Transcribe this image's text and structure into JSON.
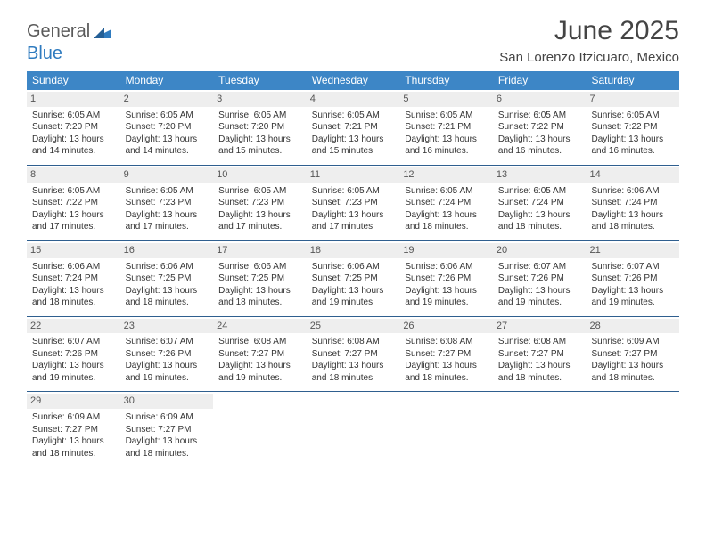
{
  "brand": {
    "part1": "General",
    "part2": "Blue"
  },
  "title": "June 2025",
  "location": "San Lorenzo Itzicuaro, Mexico",
  "colors": {
    "header_bg": "#3d86c6",
    "header_text": "#ffffff",
    "daynum_bg": "#eeeeee",
    "week_border": "#2f5f8f",
    "text": "#333333"
  },
  "weekdays": [
    "Sunday",
    "Monday",
    "Tuesday",
    "Wednesday",
    "Thursday",
    "Friday",
    "Saturday"
  ],
  "weeks": [
    [
      {
        "n": "1",
        "rise": "6:05 AM",
        "set": "7:20 PM",
        "day": "13 hours and 14 minutes."
      },
      {
        "n": "2",
        "rise": "6:05 AM",
        "set": "7:20 PM",
        "day": "13 hours and 14 minutes."
      },
      {
        "n": "3",
        "rise": "6:05 AM",
        "set": "7:20 PM",
        "day": "13 hours and 15 minutes."
      },
      {
        "n": "4",
        "rise": "6:05 AM",
        "set": "7:21 PM",
        "day": "13 hours and 15 minutes."
      },
      {
        "n": "5",
        "rise": "6:05 AM",
        "set": "7:21 PM",
        "day": "13 hours and 16 minutes."
      },
      {
        "n": "6",
        "rise": "6:05 AM",
        "set": "7:22 PM",
        "day": "13 hours and 16 minutes."
      },
      {
        "n": "7",
        "rise": "6:05 AM",
        "set": "7:22 PM",
        "day": "13 hours and 16 minutes."
      }
    ],
    [
      {
        "n": "8",
        "rise": "6:05 AM",
        "set": "7:22 PM",
        "day": "13 hours and 17 minutes."
      },
      {
        "n": "9",
        "rise": "6:05 AM",
        "set": "7:23 PM",
        "day": "13 hours and 17 minutes."
      },
      {
        "n": "10",
        "rise": "6:05 AM",
        "set": "7:23 PM",
        "day": "13 hours and 17 minutes."
      },
      {
        "n": "11",
        "rise": "6:05 AM",
        "set": "7:23 PM",
        "day": "13 hours and 17 minutes."
      },
      {
        "n": "12",
        "rise": "6:05 AM",
        "set": "7:24 PM",
        "day": "13 hours and 18 minutes."
      },
      {
        "n": "13",
        "rise": "6:05 AM",
        "set": "7:24 PM",
        "day": "13 hours and 18 minutes."
      },
      {
        "n": "14",
        "rise": "6:06 AM",
        "set": "7:24 PM",
        "day": "13 hours and 18 minutes."
      }
    ],
    [
      {
        "n": "15",
        "rise": "6:06 AM",
        "set": "7:24 PM",
        "day": "13 hours and 18 minutes."
      },
      {
        "n": "16",
        "rise": "6:06 AM",
        "set": "7:25 PM",
        "day": "13 hours and 18 minutes."
      },
      {
        "n": "17",
        "rise": "6:06 AM",
        "set": "7:25 PM",
        "day": "13 hours and 18 minutes."
      },
      {
        "n": "18",
        "rise": "6:06 AM",
        "set": "7:25 PM",
        "day": "13 hours and 19 minutes."
      },
      {
        "n": "19",
        "rise": "6:06 AM",
        "set": "7:26 PM",
        "day": "13 hours and 19 minutes."
      },
      {
        "n": "20",
        "rise": "6:07 AM",
        "set": "7:26 PM",
        "day": "13 hours and 19 minutes."
      },
      {
        "n": "21",
        "rise": "6:07 AM",
        "set": "7:26 PM",
        "day": "13 hours and 19 minutes."
      }
    ],
    [
      {
        "n": "22",
        "rise": "6:07 AM",
        "set": "7:26 PM",
        "day": "13 hours and 19 minutes."
      },
      {
        "n": "23",
        "rise": "6:07 AM",
        "set": "7:26 PM",
        "day": "13 hours and 19 minutes."
      },
      {
        "n": "24",
        "rise": "6:08 AM",
        "set": "7:27 PM",
        "day": "13 hours and 19 minutes."
      },
      {
        "n": "25",
        "rise": "6:08 AM",
        "set": "7:27 PM",
        "day": "13 hours and 18 minutes."
      },
      {
        "n": "26",
        "rise": "6:08 AM",
        "set": "7:27 PM",
        "day": "13 hours and 18 minutes."
      },
      {
        "n": "27",
        "rise": "6:08 AM",
        "set": "7:27 PM",
        "day": "13 hours and 18 minutes."
      },
      {
        "n": "28",
        "rise": "6:09 AM",
        "set": "7:27 PM",
        "day": "13 hours and 18 minutes."
      }
    ],
    [
      {
        "n": "29",
        "rise": "6:09 AM",
        "set": "7:27 PM",
        "day": "13 hours and 18 minutes."
      },
      {
        "n": "30",
        "rise": "6:09 AM",
        "set": "7:27 PM",
        "day": "13 hours and 18 minutes."
      },
      null,
      null,
      null,
      null,
      null
    ]
  ],
  "labels": {
    "sunrise": "Sunrise: ",
    "sunset": "Sunset: ",
    "daylight": "Daylight: "
  }
}
